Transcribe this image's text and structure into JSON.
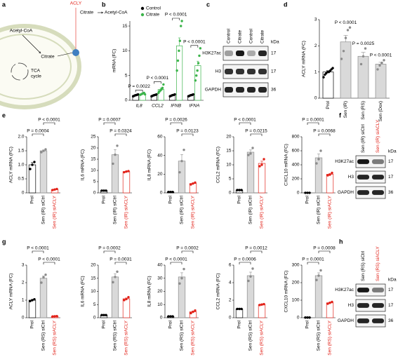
{
  "diagram": {
    "panel": "a",
    "enzyme": "ACLY",
    "citrate_out": "Citrate",
    "acetyl_coa_out": "Acetyl-CoA",
    "acetyl_coa_in": "Acetyl-CoA",
    "citrate_in": "Citrate",
    "tca": [
      "TCA",
      "cycle"
    ]
  },
  "blots": [
    {
      "panel": "c",
      "lanes": [
        "Control",
        "Citrate",
        "Control",
        "Citrate"
      ],
      "lane_colors": [
        "#000000",
        "#000000",
        "#000000",
        "#000000"
      ],
      "rows": [
        "H3K27ac",
        "H3",
        "GAPDH"
      ],
      "kda": [
        17,
        17,
        36
      ],
      "unit": "kDa"
    },
    {
      "panel": "f",
      "lanes": [
        "Sen (IR) siCtrl",
        "Sen (IR) siACLY"
      ],
      "lane_colors": [
        "#000000",
        "#e2231a"
      ],
      "rows": [
        "H3K27ac",
        "H3",
        "GAPDH"
      ],
      "kda": [
        17,
        17,
        36
      ],
      "unit": "kDa"
    },
    {
      "panel": "h",
      "lanes": [
        "Sen (RS) siCtrl",
        "Sen (RS) siACLY"
      ],
      "lane_colors": [
        "#000000",
        "#e2231a"
      ],
      "rows": [
        "H3K27ac",
        "H3",
        "GAPDH"
      ],
      "kda": [
        17,
        17,
        36
      ],
      "unit": "kDa"
    }
  ],
  "chart_data": [
    {
      "panel": "b",
      "type": "grouped_bar",
      "ylabel": "mRNA (FC)",
      "categories": [
        "IL8",
        "CCL2",
        "IFNB",
        "IFNA"
      ],
      "series": [
        {
          "name": "Control",
          "color": "#000000",
          "values": [
            1,
            1,
            1,
            1
          ],
          "errors": [
            0.05,
            0.05,
            0.05,
            0.05
          ],
          "points": [
            [
              0.8,
              0.9,
              1,
              1.05,
              1.1,
              1.2
            ],
            [
              0.8,
              0.9,
              1,
              1.05,
              1.1,
              1.2
            ],
            [
              0.8,
              0.9,
              1,
              1.05,
              1.1,
              1.2
            ],
            [
              0.8,
              0.9,
              1,
              1.05,
              1.1,
              1.2
            ]
          ]
        },
        {
          "name": "Citrate",
          "color": "#3cb44b",
          "values": [
            1.3,
            2.2,
            11,
            7
          ],
          "errors": [
            0.1,
            0.3,
            1.6,
            0.9
          ],
          "points": [
            [
              1.1,
              1.2,
              1.3,
              1.4,
              1.5,
              1.2
            ],
            [
              1.5,
              1.8,
              2,
              2.2,
              2.5,
              3.2
            ],
            [
              6,
              8,
              10,
              12,
              15,
              16
            ],
            [
              4,
              5,
              6,
              7.5,
              9,
              10.5
            ]
          ]
        }
      ],
      "ylim": [
        0,
        16
      ],
      "yticks": [
        0,
        5,
        10,
        15
      ],
      "annotations": [
        "P = 0.0022",
        "P < 0.0001",
        "P < 0.0001",
        "P < 0.0001"
      ]
    },
    {
      "panel": "d",
      "type": "bar",
      "ylabel": "ACLY mRNA (FC)",
      "categories": [
        "Prol",
        "Sen (IR)",
        "Sen (RS)",
        "Sen (Dox)"
      ],
      "values": [
        1,
        2.15,
        1.6,
        1.3
      ],
      "errors": [
        0.05,
        0.25,
        0.15,
        0.07
      ],
      "points": [
        [
          0.8,
          0.9,
          0.95,
          1,
          1,
          1.05,
          1.1,
          1.15
        ],
        [
          1.5,
          1.8,
          2.3,
          2.6,
          2.7
        ],
        [
          1.3,
          1.6,
          1.9
        ],
        [
          1.1,
          1.25,
          1.35,
          1.45
        ]
      ],
      "colors": [
        "#000000",
        "#8c8c8c",
        "#8c8c8c",
        "#8c8c8c"
      ],
      "bar_colors": [
        "#ffffff",
        "#d9d9d9",
        "#d9d9d9",
        "#d9d9d9"
      ],
      "ylim": [
        0,
        3
      ],
      "yticks": [
        0,
        1,
        2,
        3
      ],
      "annotations": [
        "P < 0.0001",
        "P = 0.0025",
        "P < 0.0001"
      ]
    },
    {
      "panel": "e",
      "type": "bar",
      "ylabel": "ACLY mRNA (FC)",
      "categories": [
        "Prol",
        "Sen (IR) siCtrl",
        "Sen (IR) siACLY"
      ],
      "values": [
        1,
        1.5,
        0.12
      ],
      "errors": [
        0.08,
        0.03,
        0.01
      ],
      "points": [
        [
          0.85,
          1,
          1.1
        ],
        [
          1.45,
          1.5,
          1.55
        ],
        [
          0.1,
          0.12,
          0.14
        ]
      ],
      "colors": [
        "#000000",
        "#8c8c8c",
        "#e2231a"
      ],
      "bar_colors": [
        "#ffffff",
        "#d9d9d9",
        "#ffffff"
      ],
      "label_colors": [
        "#000000",
        "#000000",
        "#e2231a"
      ],
      "ylim": [
        0,
        2
      ],
      "yticks": [
        0,
        0.5,
        {
          "value": 1,
          "label": "1.0"
        },
        1.5,
        {
          "value": 2,
          "label": "2.0"
        }
      ],
      "annotations": [
        "P = 0.0004",
        "P < 0.0001"
      ]
    },
    {
      "type": "bar",
      "ylabel": "IL6 mRNA (FC)",
      "categories": [
        "Prol",
        "Sen (IR) siCtrl",
        "Sen (IR) siACLY"
      ],
      "values": [
        1,
        17,
        9.5
      ],
      "errors": [
        0.05,
        2.3,
        0.15
      ],
      "points": [
        [
          1,
          1,
          1
        ],
        [
          13,
          17,
          21
        ],
        [
          9.2,
          9.5,
          9.7
        ]
      ],
      "colors": [
        "#000000",
        "#8c8c8c",
        "#e2231a"
      ],
      "bar_colors": [
        "#ffffff",
        "#d9d9d9",
        "#ffffff"
      ],
      "label_colors": [
        "#000000",
        "#000000",
        "#e2231a"
      ],
      "ylim": [
        0,
        25
      ],
      "yticks": [
        0,
        5,
        10,
        15,
        20,
        25
      ],
      "annotations": [
        "P = 0.0007",
        "P = 0.0324"
      ]
    },
    {
      "type": "bar",
      "ylabel": "IL8 mRNA (FC)",
      "categories": [
        "Prol",
        "Sen (IR) siCtrl",
        "Sen (IR) siACLY"
      ],
      "values": [
        1,
        34,
        10
      ],
      "errors": [
        0.05,
        7,
        0.6
      ],
      "points": [
        [
          1,
          1,
          1
        ],
        [
          22,
          34,
          46
        ],
        [
          9,
          10,
          11
        ]
      ],
      "colors": [
        "#000000",
        "#8c8c8c",
        "#e2231a"
      ],
      "bar_colors": [
        "#ffffff",
        "#d9d9d9",
        "#ffffff"
      ],
      "label_colors": [
        "#000000",
        "#000000",
        "#e2231a"
      ],
      "ylim": [
        0,
        60
      ],
      "yticks": [
        0,
        20,
        40,
        60
      ],
      "annotations": [
        "P = 0.0026",
        "P = 0.0123"
      ]
    },
    {
      "type": "bar",
      "ylabel": "CCL2 mRNA (FC)",
      "categories": [
        "Prol",
        "Sen (IR) siCtrl",
        "Sen (IR) siACLY"
      ],
      "values": [
        1,
        14.5,
        10.5
      ],
      "errors": [
        0.05,
        0.8,
        0.8
      ],
      "points": [
        [
          1,
          1,
          1
        ],
        [
          13.5,
          14,
          16
        ],
        [
          9.5,
          10,
          12
        ]
      ],
      "colors": [
        "#000000",
        "#8c8c8c",
        "#e2231a"
      ],
      "bar_colors": [
        "#ffffff",
        "#d9d9d9",
        "#ffffff"
      ],
      "label_colors": [
        "#000000",
        "#000000",
        "#e2231a"
      ],
      "ylim": [
        0,
        20
      ],
      "yticks": [
        0,
        5,
        10,
        15,
        20
      ],
      "annotations": [
        "P < 0.0001",
        "P = 0.0215"
      ]
    },
    {
      "type": "bar",
      "ylabel": "CXCL10 mRNA (FC)",
      "categories": [
        "Prol",
        "Sen (IR) siCtrl",
        "Sen (IR) siACLY"
      ],
      "values": [
        1,
        500,
        265
      ],
      "errors": [
        0.1,
        55,
        10
      ],
      "points": [
        [
          1,
          1,
          1
        ],
        [
          420,
          480,
          600
        ],
        [
          250,
          260,
          285
        ]
      ],
      "colors": [
        "#000000",
        "#8c8c8c",
        "#e2231a"
      ],
      "bar_colors": [
        "#ffffff",
        "#d9d9d9",
        "#ffffff"
      ],
      "label_colors": [
        "#000000",
        "#000000",
        "#e2231a"
      ],
      "ylim": [
        0,
        800
      ],
      "yticks": [
        0,
        200,
        400,
        600,
        800
      ],
      "annotations": [
        "P = 0.0001",
        "P = 0.0068"
      ]
    },
    {
      "panel": "g",
      "type": "bar",
      "ylabel": "ACLY mRNA (FC)",
      "categories": [
        "Prol",
        "Sen (RS) siCtrl",
        "Sen (RS) siACLY"
      ],
      "values": [
        1,
        2.25,
        0.08
      ],
      "errors": [
        0.04,
        0.13,
        0.005
      ],
      "points": [
        [
          0.95,
          1,
          1.05
        ],
        [
          2,
          2.3,
          2.45
        ],
        [
          0.07,
          0.08,
          0.09
        ]
      ],
      "colors": [
        "#000000",
        "#8c8c8c",
        "#e2231a"
      ],
      "bar_colors": [
        "#ffffff",
        "#d9d9d9",
        "#ffffff"
      ],
      "label_colors": [
        "#000000",
        "#000000",
        "#e2231a"
      ],
      "ylim": [
        0,
        3
      ],
      "yticks": [
        0,
        1,
        2,
        3
      ],
      "annotations": [
        "P < 0.0001",
        "P < 0.0001"
      ]
    },
    {
      "type": "bar",
      "ylabel": "IL6 mRNA (FC)",
      "categories": [
        "Prol",
        "Sen (RS) siCtrl",
        "Sen (RS) siACLY"
      ],
      "values": [
        1,
        15.5,
        7.2
      ],
      "errors": [
        0.02,
        1.2,
        0.3
      ],
      "points": [
        [
          1,
          1,
          1
        ],
        [
          13.5,
          15.5,
          17.5
        ],
        [
          6.7,
          7.1,
          7.8
        ]
      ],
      "colors": [
        "#000000",
        "#8c8c8c",
        "#e2231a"
      ],
      "bar_colors": [
        "#ffffff",
        "#d9d9d9",
        "#ffffff"
      ],
      "label_colors": [
        "#000000",
        "#000000",
        "#e2231a"
      ],
      "ylim": [
        0,
        20
      ],
      "yticks": [
        0,
        5,
        10,
        15,
        20
      ],
      "annotations": [
        "P = 0.0002",
        "P = 0.0031"
      ]
    },
    {
      "type": "bar",
      "ylabel": "IL8 mRNA (FC)",
      "categories": [
        "Prol",
        "Sen (RS) siCtrl",
        "Sen (RS) siACLY"
      ],
      "values": [
        1,
        31,
        4.5
      ],
      "errors": [
        0.02,
        3.2,
        0.6
      ],
      "points": [
        [
          1,
          1,
          1
        ],
        [
          26,
          30,
          37
        ],
        [
          3.5,
          4.5,
          5.5
        ]
      ],
      "colors": [
        "#000000",
        "#8c8c8c",
        "#e2231a"
      ],
      "bar_colors": [
        "#ffffff",
        "#d9d9d9",
        "#ffffff"
      ],
      "label_colors": [
        "#000000",
        "#000000",
        "#e2231a"
      ],
      "ylim": [
        0,
        40
      ],
      "yticks": [
        0,
        10,
        20,
        30,
        40
      ],
      "annotations": [
        "P < 0.0001",
        "P = 0.0002"
      ]
    },
    {
      "type": "bar",
      "ylabel": "CCL2 mRNA (FC)",
      "categories": [
        "Prol",
        "Sen (RS) siCtrl",
        "Sen (RS) siACLY"
      ],
      "values": [
        1,
        4.8,
        1.5
      ],
      "errors": [
        0.01,
        0.4,
        0.03
      ],
      "points": [
        [
          1,
          1,
          1
        ],
        [
          4.2,
          4.7,
          5.6
        ],
        [
          1.45,
          1.5,
          1.55
        ]
      ],
      "colors": [
        "#000000",
        "#8c8c8c",
        "#e2231a"
      ],
      "bar_colors": [
        "#ffffff",
        "#d9d9d9",
        "#ffffff"
      ],
      "label_colors": [
        "#000000",
        "#000000",
        "#e2231a"
      ],
      "ylim": [
        0,
        6
      ],
      "yticks": [
        0,
        2,
        4,
        6
      ],
      "annotations": [
        "P = 0.0006",
        "P = 0.0012"
      ]
    },
    {
      "type": "bar",
      "ylabel": "CXCL10 mRNA (FC)",
      "categories": [
        "Prol",
        "Sen (RS) siCtrl",
        "Sen (RS) siACLY"
      ],
      "values": [
        1,
        240,
        85
      ],
      "errors": [
        0.1,
        16,
        3
      ],
      "points": [
        [
          1,
          1,
          1
        ],
        [
          215,
          240,
          270
        ],
        [
          80,
          85,
          90
        ]
      ],
      "colors": [
        "#000000",
        "#8c8c8c",
        "#e2231a"
      ],
      "bar_colors": [
        "#ffffff",
        "#d9d9d9",
        "#ffffff"
      ],
      "label_colors": [
        "#000000",
        "#000000",
        "#e2231a"
      ],
      "ylim": [
        0,
        300
      ],
      "yticks": [
        0,
        100,
        200,
        300
      ],
      "annotations": [
        "P = 0.0001",
        "P = 0.0008"
      ]
    }
  ]
}
